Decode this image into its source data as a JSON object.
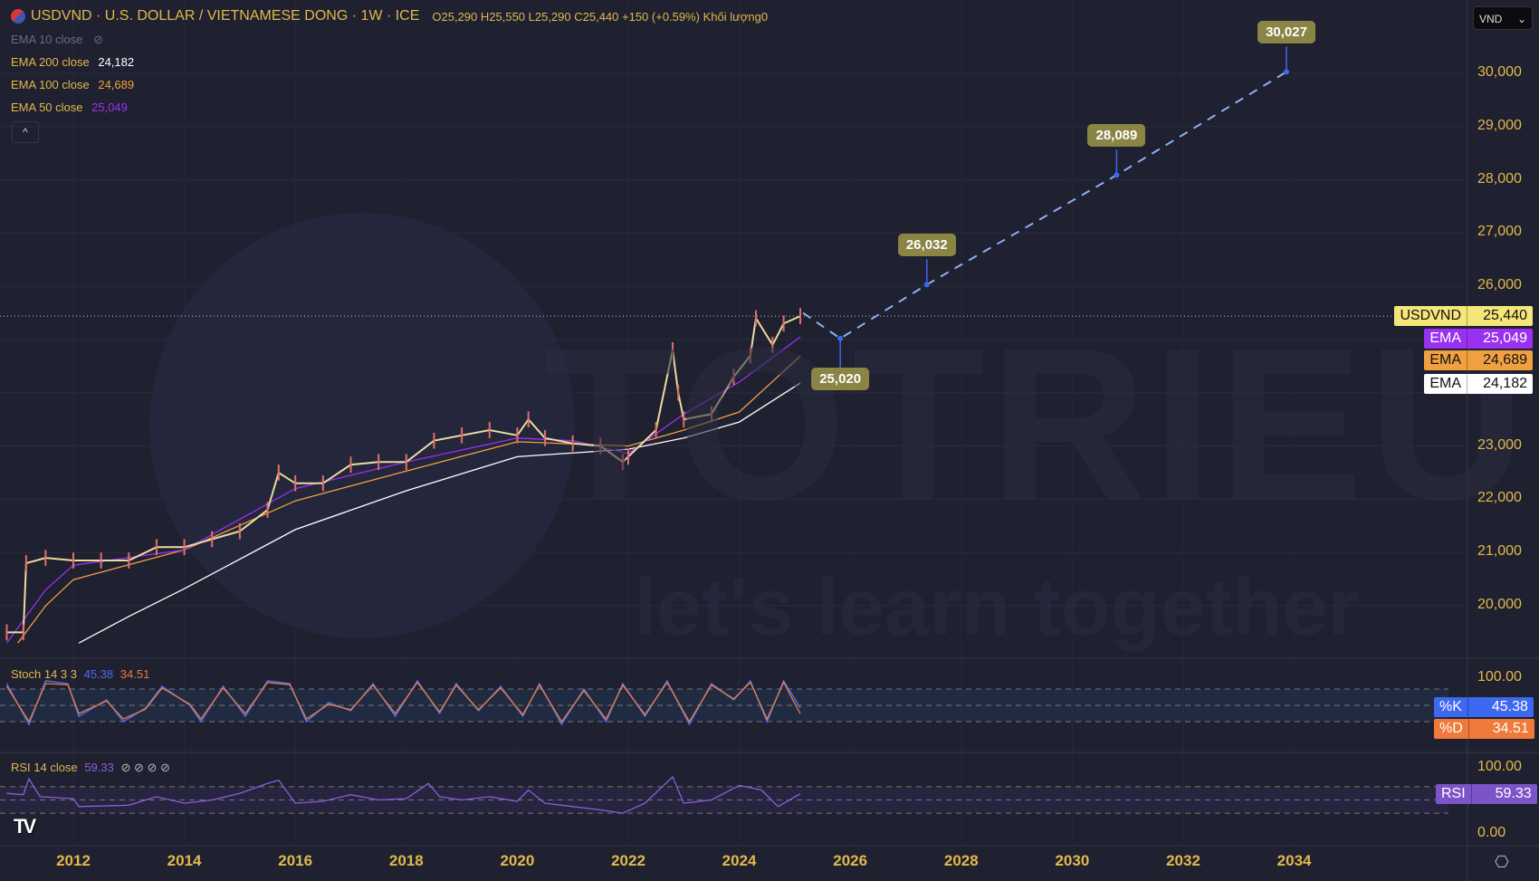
{
  "header": {
    "symbol": "USDVND",
    "title": "USDVND · U.S. DOLLAR / VIETNAMESE DONG · 1W · ICE",
    "ohlc": "O25,290  H25,550  L25,290  C25,440  +150 (+0.59%)  Khối lượng0"
  },
  "legend": {
    "ema10": {
      "label": "EMA 10 close",
      "icon": "eye-off-icon"
    },
    "ema200": {
      "label": "EMA 200 close",
      "value": "24,182"
    },
    "ema100": {
      "label": "EMA 100 close",
      "value": "24,689"
    },
    "ema50": {
      "label": "EMA 50 close",
      "value": "25,049"
    },
    "collapse": "^"
  },
  "currency_select": {
    "value": "VND",
    "chevron": "⌄"
  },
  "price_axis": {
    "ticks": [
      "30,000",
      "29,000",
      "28,000",
      "27,000",
      "26,000",
      "23,000",
      "22,000",
      "21,000",
      "20,000"
    ]
  },
  "price_tags": [
    {
      "name": "USDVND",
      "value": "25,440",
      "bg": "#f5e67a",
      "fg": "#111"
    },
    {
      "name": "EMA",
      "value": "25,049",
      "bg": "#9b30f0",
      "fg": "#fff"
    },
    {
      "name": "EMA",
      "value": "24,689",
      "bg": "#f0a040",
      "fg": "#111"
    },
    {
      "name": "EMA",
      "value": "24,182",
      "bg": "#ffffff",
      "fg": "#111"
    }
  ],
  "stoch": {
    "label": "Stoch 14 3 3",
    "k": "45.38",
    "d": "34.51",
    "axis_top": "100.00",
    "tag_k": {
      "name": "%K",
      "value": "45.38"
    },
    "tag_d": {
      "name": "%D",
      "value": "34.51"
    }
  },
  "rsi": {
    "label": "RSI 14 close",
    "value": "59.33",
    "icons": "⊘ ⊘ ⊘ ⊘",
    "axis_top": "100.00",
    "axis_bottom": "0.00",
    "tag": {
      "name": "RSI",
      "value": "59.33"
    }
  },
  "time_axis": {
    "ticks": [
      "2012",
      "2014",
      "2016",
      "2018",
      "2020",
      "2022",
      "2024",
      "2026",
      "2028",
      "2030",
      "2032",
      "2034"
    ]
  },
  "watermark": {
    "brand": "TOTRIEU",
    "tagline": "let's learn together"
  },
  "colors": {
    "background": "#1f2030",
    "axis_text": "#e2b94a",
    "price": "#eadca0",
    "ema50": "#9b30f0",
    "ema100": "#f0a040",
    "ema200": "#ffffff",
    "projection": "#8fb0f0",
    "stoch_k": "#4a6ff0",
    "stoch_d": "#f07a3a",
    "rsi": "#8a5fd8",
    "label_bg": "#8a8445"
  },
  "chart_data": {
    "type": "line",
    "price_range": [
      19300,
      30700
    ],
    "price": [
      [
        2010.8,
        19500
      ],
      [
        2011.1,
        19500
      ],
      [
        2011.15,
        20800
      ],
      [
        2011.5,
        20900
      ],
      [
        2012,
        20850
      ],
      [
        2012.5,
        20850
      ],
      [
        2013,
        20850
      ],
      [
        2013.5,
        21100
      ],
      [
        2014,
        21100
      ],
      [
        2014.5,
        21250
      ],
      [
        2015,
        21400
      ],
      [
        2015.5,
        21800
      ],
      [
        2015.7,
        22500
      ],
      [
        2016,
        22300
      ],
      [
        2016.5,
        22300
      ],
      [
        2017,
        22650
      ],
      [
        2017.5,
        22700
      ],
      [
        2018,
        22700
      ],
      [
        2018.5,
        23100
      ],
      [
        2019,
        23200
      ],
      [
        2019.5,
        23300
      ],
      [
        2020,
        23200
      ],
      [
        2020.2,
        23500
      ],
      [
        2020.5,
        23150
      ],
      [
        2021,
        23050
      ],
      [
        2021.5,
        23000
      ],
      [
        2021.9,
        22700
      ],
      [
        2022,
        22800
      ],
      [
        2022.5,
        23300
      ],
      [
        2022.8,
        24800
      ],
      [
        2022.9,
        24000
      ],
      [
        2023,
        23500
      ],
      [
        2023.5,
        23600
      ],
      [
        2023.9,
        24300
      ],
      [
        2024.2,
        24700
      ],
      [
        2024.3,
        25400
      ],
      [
        2024.6,
        24900
      ],
      [
        2024.8,
        25300
      ],
      [
        2025.1,
        25440
      ]
    ],
    "ema50": [
      [
        2010.8,
        19300
      ],
      [
        2011.5,
        20300
      ],
      [
        2012,
        20760
      ],
      [
        2014,
        21050
      ],
      [
        2016,
        22200
      ],
      [
        2018,
        22700
      ],
      [
        2020,
        23150
      ],
      [
        2021,
        23100
      ],
      [
        2022,
        22860
      ],
      [
        2023,
        23600
      ],
      [
        2024,
        24200
      ],
      [
        2025.1,
        25049
      ]
    ],
    "ema100": [
      [
        2011,
        19300
      ],
      [
        2011.5,
        20000
      ],
      [
        2012,
        20490
      ],
      [
        2014,
        21050
      ],
      [
        2016,
        21970
      ],
      [
        2018,
        22530
      ],
      [
        2020,
        23080
      ],
      [
        2022,
        23000
      ],
      [
        2023,
        23300
      ],
      [
        2024,
        23640
      ],
      [
        2025.1,
        24689
      ]
    ],
    "ema200": [
      [
        2012.1,
        19300
      ],
      [
        2013,
        19800
      ],
      [
        2014,
        20320
      ],
      [
        2016,
        21430
      ],
      [
        2018,
        22160
      ],
      [
        2020,
        22800
      ],
      [
        2022,
        22940
      ],
      [
        2023,
        23150
      ],
      [
        2024,
        23450
      ],
      [
        2025.1,
        24182
      ]
    ],
    "projection": [
      {
        "year": 2025.15,
        "price": 25500,
        "label": ""
      },
      {
        "year": 2025.82,
        "price": 25020,
        "label": "25,020"
      },
      {
        "year": 2027.38,
        "price": 26032,
        "label": "26,032"
      },
      {
        "year": 2030.8,
        "price": 28089,
        "label": "28,089"
      },
      {
        "year": 2033.86,
        "price": 30027,
        "label": "30,027"
      }
    ],
    "stoch_k": [
      [
        2010.8,
        90
      ],
      [
        2011.2,
        15
      ],
      [
        2011.5,
        95
      ],
      [
        2011.9,
        90
      ],
      [
        2012.1,
        30
      ],
      [
        2012.6,
        60
      ],
      [
        2012.9,
        20
      ],
      [
        2013.3,
        45
      ],
      [
        2013.6,
        85
      ],
      [
        2014.1,
        50
      ],
      [
        2014.3,
        20
      ],
      [
        2014.7,
        85
      ],
      [
        2015.1,
        30
      ],
      [
        2015.5,
        95
      ],
      [
        2015.9,
        90
      ],
      [
        2016.2,
        20
      ],
      [
        2016.6,
        55
      ],
      [
        2017,
        40
      ],
      [
        2017.4,
        90
      ],
      [
        2017.8,
        30
      ],
      [
        2018.2,
        95
      ],
      [
        2018.6,
        35
      ],
      [
        2018.9,
        90
      ],
      [
        2019.3,
        40
      ],
      [
        2019.7,
        85
      ],
      [
        2020.1,
        30
      ],
      [
        2020.4,
        90
      ],
      [
        2020.8,
        15
      ],
      [
        2021.2,
        80
      ],
      [
        2021.6,
        20
      ],
      [
        2021.9,
        90
      ],
      [
        2022.3,
        30
      ],
      [
        2022.7,
        95
      ],
      [
        2023.1,
        15
      ],
      [
        2023.5,
        90
      ],
      [
        2023.9,
        60
      ],
      [
        2024.2,
        95
      ],
      [
        2024.5,
        20
      ],
      [
        2024.8,
        95
      ],
      [
        2025.1,
        45.38
      ]
    ],
    "stoch_d": [
      [
        2010.8,
        85
      ],
      [
        2011.2,
        20
      ],
      [
        2011.5,
        90
      ],
      [
        2011.9,
        88
      ],
      [
        2012.1,
        35
      ],
      [
        2012.6,
        58
      ],
      [
        2012.9,
        25
      ],
      [
        2013.3,
        43
      ],
      [
        2013.6,
        82
      ],
      [
        2014.1,
        52
      ],
      [
        2014.3,
        25
      ],
      [
        2014.7,
        82
      ],
      [
        2015.1,
        35
      ],
      [
        2015.5,
        92
      ],
      [
        2015.9,
        88
      ],
      [
        2016.2,
        25
      ],
      [
        2016.6,
        52
      ],
      [
        2017,
        42
      ],
      [
        2017.4,
        87
      ],
      [
        2017.8,
        35
      ],
      [
        2018.2,
        92
      ],
      [
        2018.6,
        38
      ],
      [
        2018.9,
        87
      ],
      [
        2019.3,
        42
      ],
      [
        2019.7,
        82
      ],
      [
        2020.1,
        33
      ],
      [
        2020.4,
        87
      ],
      [
        2020.8,
        20
      ],
      [
        2021.2,
        77
      ],
      [
        2021.6,
        25
      ],
      [
        2021.9,
        87
      ],
      [
        2022.3,
        33
      ],
      [
        2022.7,
        92
      ],
      [
        2023.1,
        20
      ],
      [
        2023.5,
        87
      ],
      [
        2023.9,
        62
      ],
      [
        2024.2,
        92
      ],
      [
        2024.5,
        25
      ],
      [
        2024.8,
        92
      ],
      [
        2025.1,
        34.51
      ]
    ],
    "rsi": [
      [
        2010.8,
        60
      ],
      [
        2011.1,
        58
      ],
      [
        2011.2,
        82
      ],
      [
        2011.4,
        55
      ],
      [
        2012,
        52
      ],
      [
        2012.1,
        40
      ],
      [
        2013,
        42
      ],
      [
        2013.5,
        55
      ],
      [
        2014,
        45
      ],
      [
        2014.5,
        50
      ],
      [
        2015,
        60
      ],
      [
        2015.5,
        75
      ],
      [
        2015.7,
        80
      ],
      [
        2016,
        45
      ],
      [
        2016.5,
        48
      ],
      [
        2017,
        58
      ],
      [
        2017.5,
        50
      ],
      [
        2018,
        52
      ],
      [
        2018.4,
        75
      ],
      [
        2018.6,
        55
      ],
      [
        2019,
        50
      ],
      [
        2019.5,
        55
      ],
      [
        2020,
        48
      ],
      [
        2020.2,
        65
      ],
      [
        2020.5,
        45
      ],
      [
        2021,
        40
      ],
      [
        2021.5,
        35
      ],
      [
        2021.9,
        30
      ],
      [
        2022.3,
        45
      ],
      [
        2022.8,
        85
      ],
      [
        2023,
        45
      ],
      [
        2023.5,
        50
      ],
      [
        2024,
        72
      ],
      [
        2024.4,
        65
      ],
      [
        2024.7,
        40
      ],
      [
        2025.1,
        59.33
      ]
    ]
  }
}
